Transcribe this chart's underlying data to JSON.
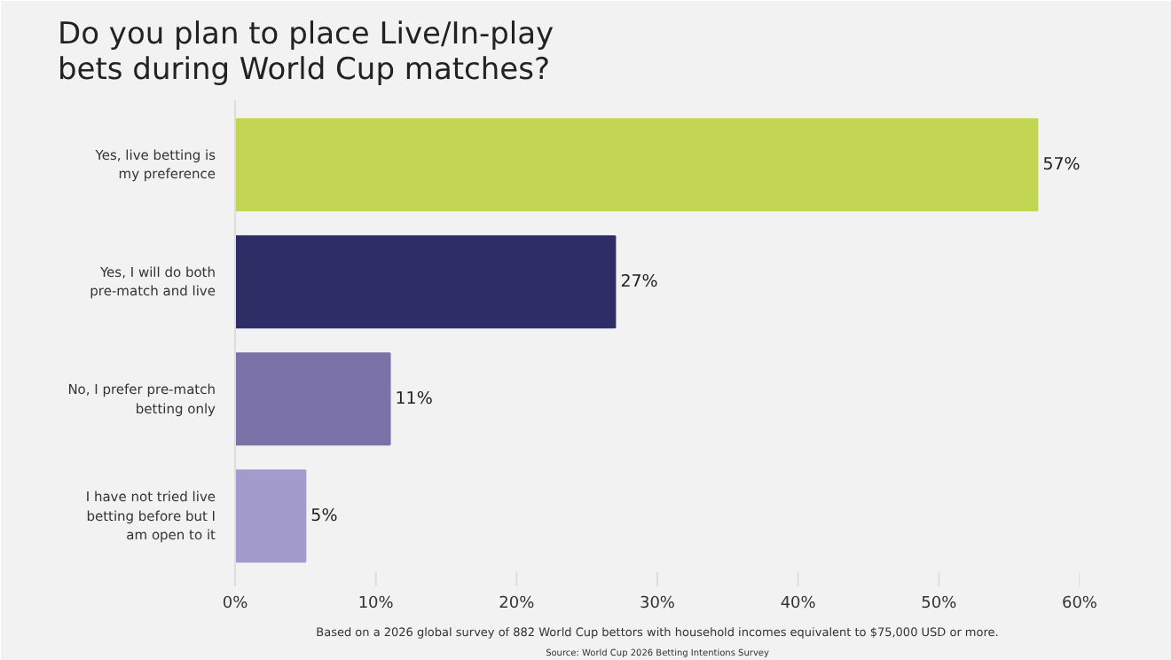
{
  "chart_data": {
    "type": "bar",
    "orientation": "horizontal",
    "title": "Do you plan to place Live/In-play bets during World Cup matches?",
    "categories": [
      "Yes, live betting is my preference",
      "Yes, I will do both pre-match and live",
      "No, I prefer pre-match betting only",
      "I have not tried live betting before but I am open to it"
    ],
    "values": [
      57,
      27,
      11,
      5
    ],
    "colors": [
      "#c3d654",
      "#2e2d66",
      "#7b72a8",
      "#a39bcb"
    ],
    "value_labels": [
      "57%",
      "27%",
      "11%",
      "5%"
    ],
    "xlim": [
      0,
      60
    ],
    "xticks": [
      {
        "value": 0,
        "label": "0%"
      },
      {
        "value": 10,
        "label": "10%"
      },
      {
        "value": 20,
        "label": "20%"
      },
      {
        "value": 30,
        "label": "30%"
      },
      {
        "value": 40,
        "label": "40%"
      },
      {
        "value": 50,
        "label": "50%"
      },
      {
        "value": 60,
        "label": "60%"
      }
    ],
    "grid": false,
    "annotations": [
      "Based on a 2026 global survey of 882 World Cup bettors with household incomes equivalent to $75,000 USD or more.",
      "Source: World Cup 2026 Betting Intentions Survey"
    ]
  }
}
